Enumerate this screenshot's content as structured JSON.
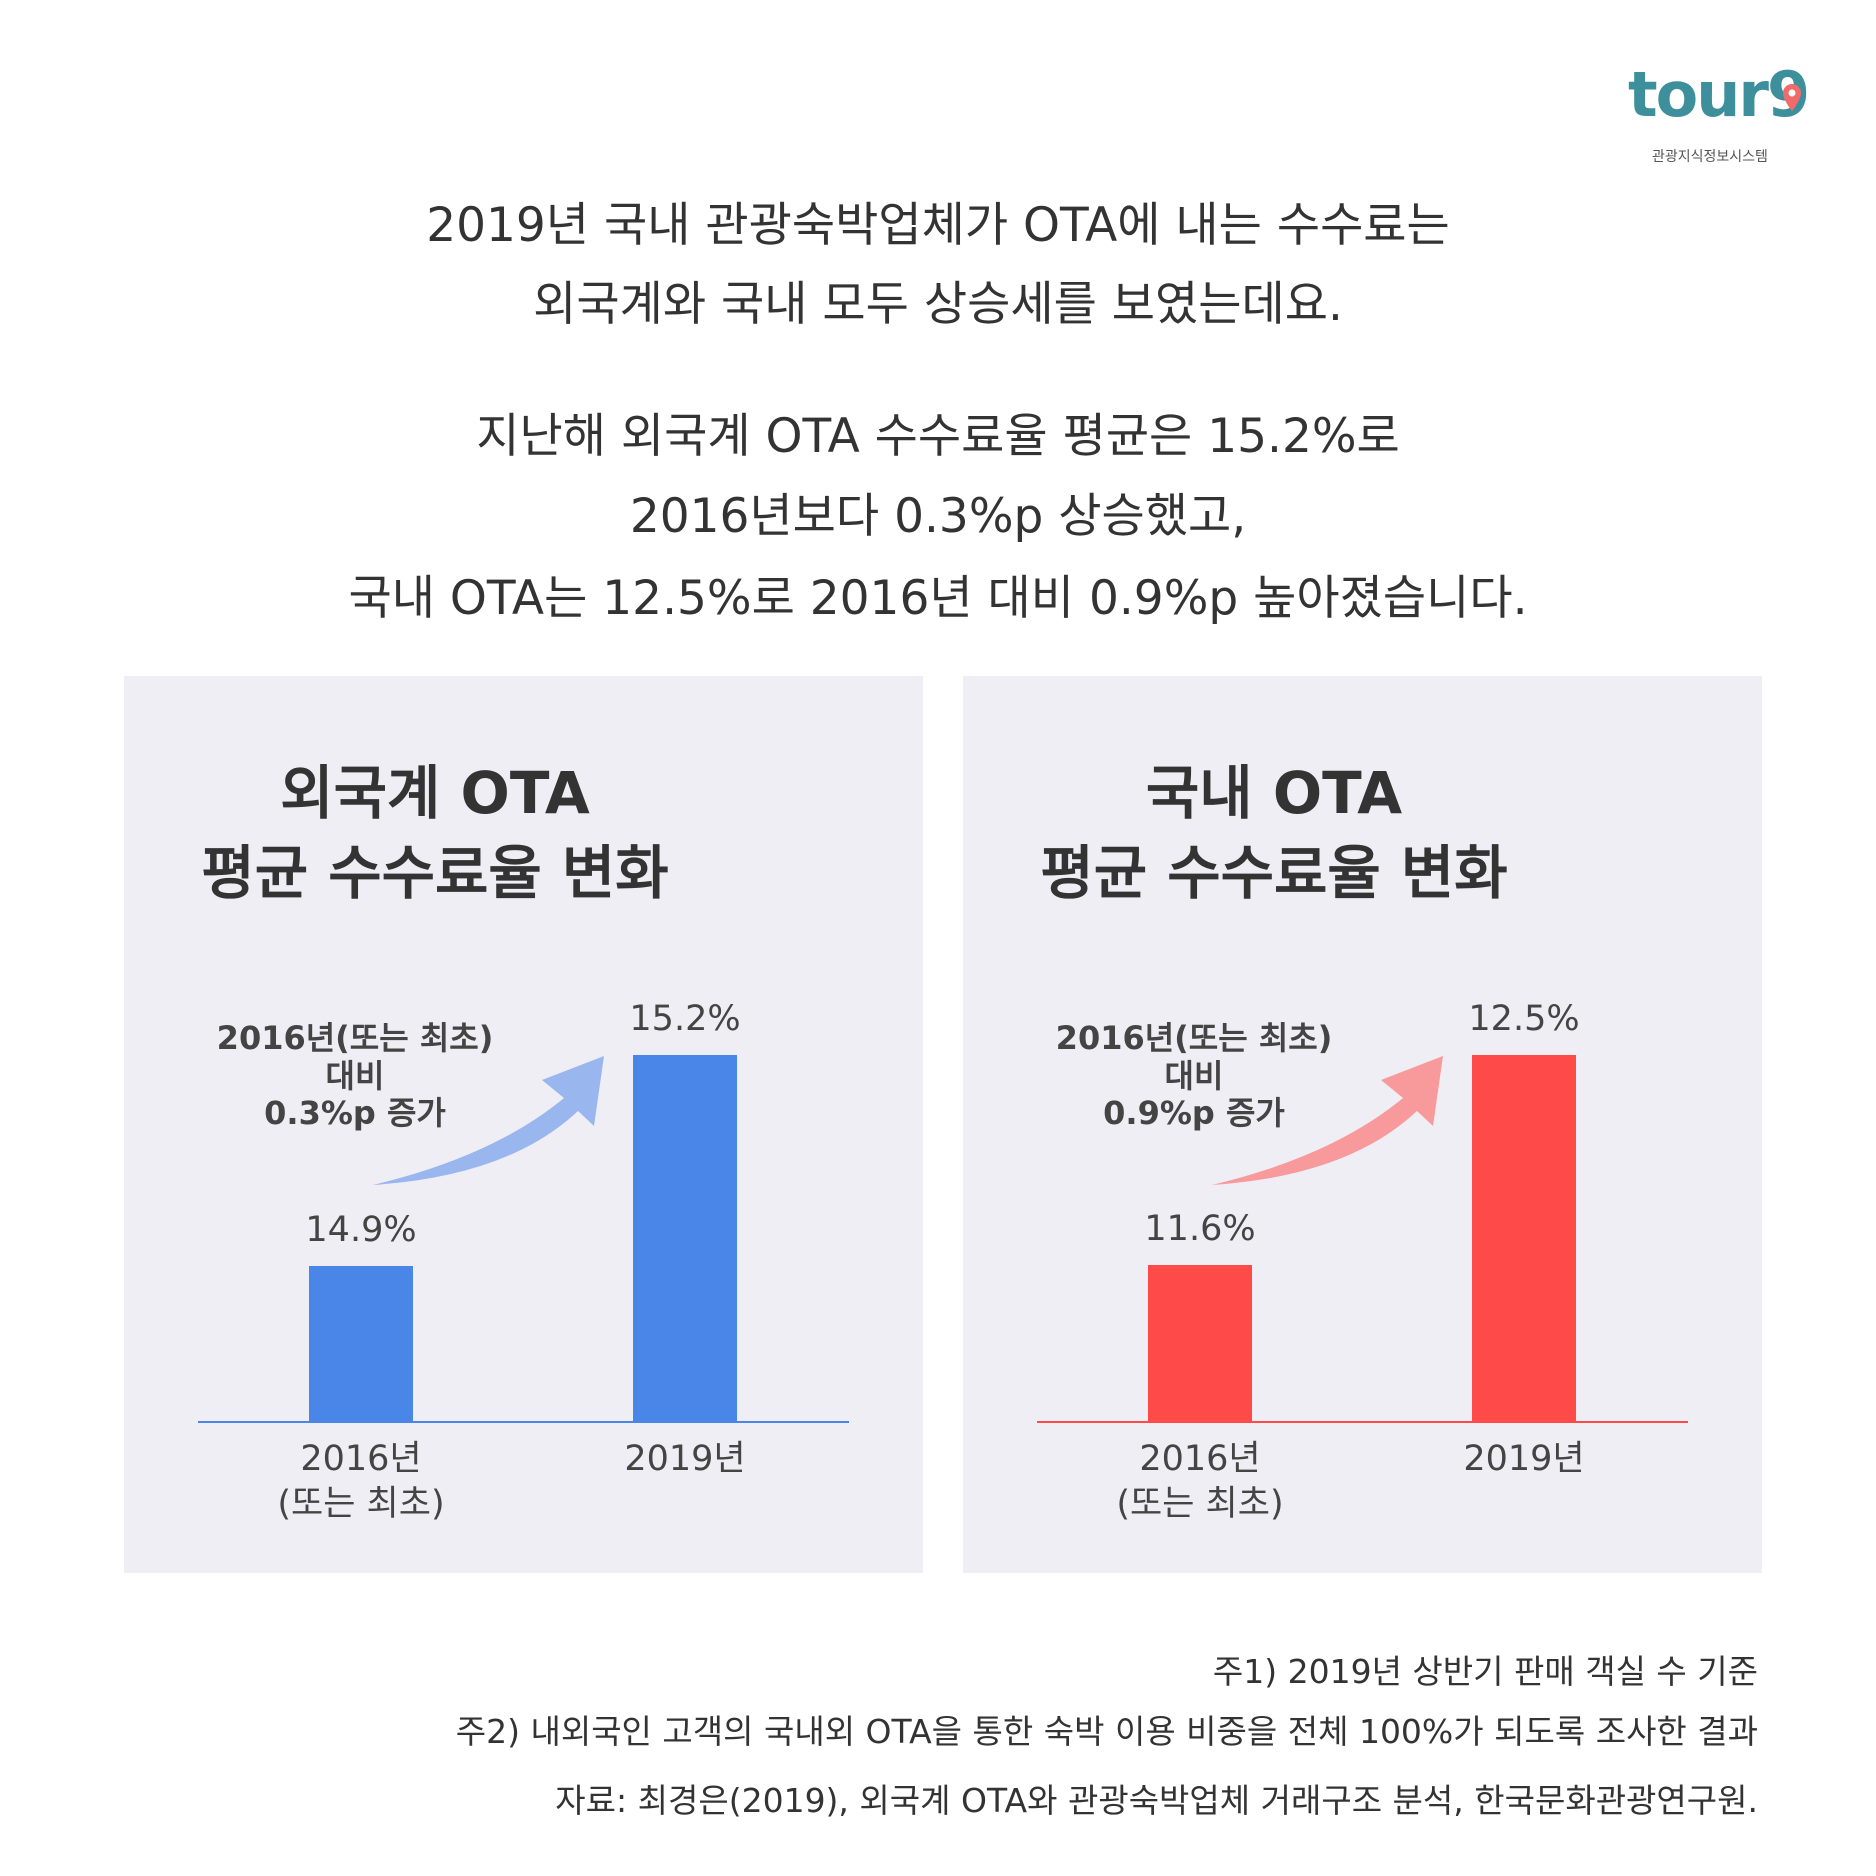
{
  "logo": {
    "name": "tour9",
    "subtitle": "관광지식정보시스템"
  },
  "headline": {
    "lines": [
      "2019년 국내 관광숙박업체가 OTA에 내는 수수료는",
      "외국계와 국내 모두 상승세를 보였는데요."
    ]
  },
  "summary": {
    "lines": [
      "지난해 외국계 OTA 수수료율 평균은 15.2%로",
      "2016년보다 0.3%p 상승했고,",
      "국내 OTA는 12.5%로 2016년 대비 0.9%p 높아졌습니다."
    ]
  },
  "chart_data": [
    {
      "type": "bar",
      "title": [
        "외국계 OTA",
        "평균 수수료율 변화"
      ],
      "categories": [
        "2016년\n(또는 최초)",
        "2019년"
      ],
      "values": [
        14.9,
        15.2
      ],
      "value_labels": [
        "14.9%",
        "15.2%"
      ],
      "color": "#4a86e8",
      "ylim": [
        14.68,
        15.2
      ],
      "annotation": [
        "2016년(또는 최초)",
        "대비",
        "0.3%p 증가"
      ],
      "arrow_color": "#9ab6ee"
    },
    {
      "type": "bar",
      "title": [
        "국내 OTA",
        "평균 수수료율 변화"
      ],
      "categories": [
        "2016년\n(또는 최초)",
        "2019년"
      ],
      "values": [
        11.6,
        12.5
      ],
      "value_labels": [
        "11.6%",
        "12.5%"
      ],
      "color": "#ff4a4a",
      "ylim": [
        10.93,
        12.5
      ],
      "annotation": [
        "2016년(또는 최초)",
        "대비",
        "0.9%p 증가"
      ],
      "arrow_color": "#f89a9c"
    }
  ],
  "notes": [
    "주1) 2019년 상반기 판매 객실 수 기준",
    "주2) 내외국인 고객의 국내외 OTA을 통한 숙박 이용 비중을 전체 100%가 되도록 조사한 결과",
    "자료: 최경은(2019), 외국계 OTA와 관광숙박업체 거래구조 분석, 한국문화관광연구원."
  ]
}
